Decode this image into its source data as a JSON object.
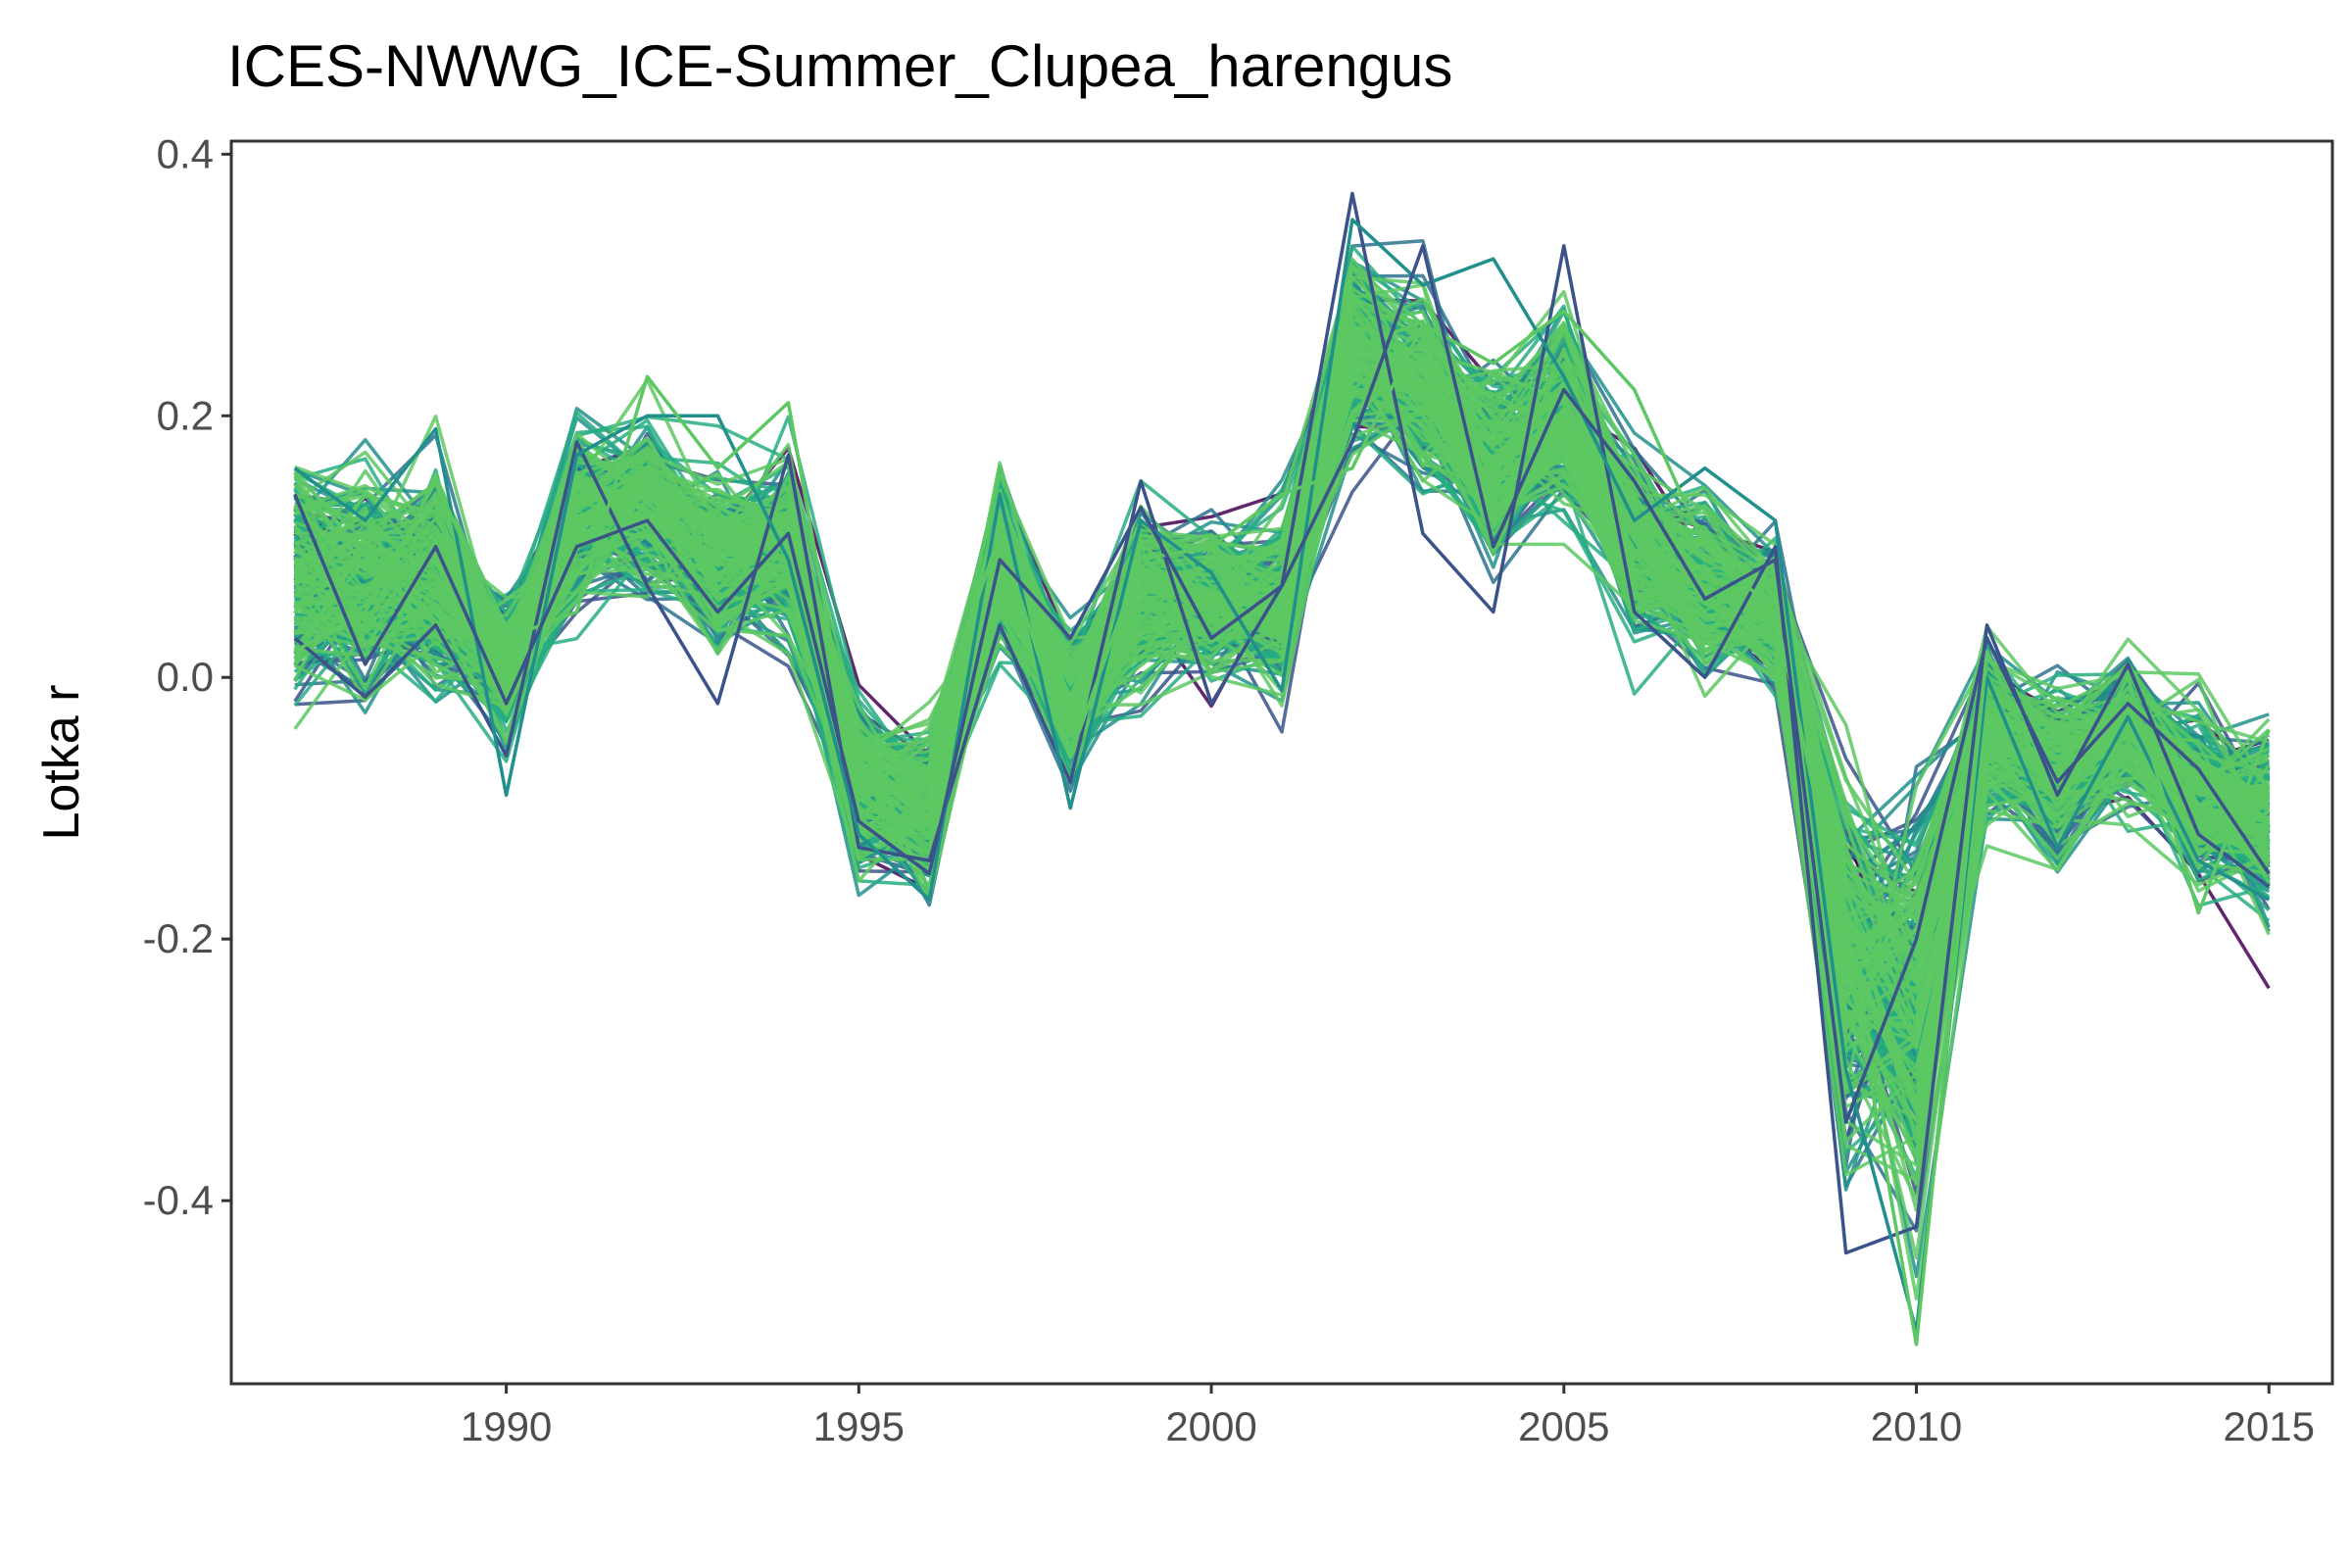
{
  "chart_data": {
    "type": "line",
    "title": "ICES-NWWG_ICE-Summer_Clupea_harengus",
    "xlabel": "",
    "ylabel": "Lotka r",
    "xlim": [
      1986.1,
      2015.9
    ],
    "ylim": [
      -0.54,
      0.41
    ],
    "x_ticks": [
      1990,
      1995,
      2000,
      2005,
      2010,
      2015
    ],
    "x_tick_labels": [
      "1990",
      "1995",
      "2000",
      "2005",
      "2010",
      "2015"
    ],
    "y_ticks": [
      -0.4,
      -0.2,
      0.0,
      0.2,
      0.4
    ],
    "y_tick_labels": [
      "-0.4",
      "-0.2",
      "0.0",
      "0.2",
      "0.4"
    ],
    "grid": false,
    "legend": "none",
    "palette": [
      "#440154",
      "#3b528b",
      "#2c728e",
      "#21908c",
      "#27ad81",
      "#5dc863"
    ],
    "x": [
      1987,
      1988,
      1989,
      1990,
      1991,
      1992,
      1993,
      1994,
      1995,
      1996,
      1997,
      1998,
      1999,
      2000,
      2001,
      2002,
      2003,
      2004,
      2005,
      2006,
      2007,
      2008,
      2009,
      2010,
      2011,
      2012,
      2013,
      2014,
      2015
    ],
    "series_mean": [
      0.075,
      0.07,
      0.075,
      0.01,
      0.12,
      0.13,
      0.09,
      0.1,
      -0.08,
      -0.1,
      0.09,
      -0.02,
      0.06,
      0.06,
      0.06,
      0.25,
      0.22,
      0.16,
      0.2,
      0.1,
      0.07,
      0.05,
      -0.22,
      -0.25,
      -0.04,
      -0.07,
      -0.04,
      -0.09,
      -0.11
    ],
    "series_spread": [
      0.04,
      0.04,
      0.04,
      0.025,
      0.03,
      0.03,
      0.03,
      0.03,
      0.03,
      0.03,
      0.03,
      0.025,
      0.03,
      0.025,
      0.03,
      0.035,
      0.03,
      0.035,
      0.035,
      0.03,
      0.03,
      0.025,
      0.06,
      0.07,
      0.03,
      0.03,
      0.025,
      0.03,
      0.03
    ],
    "series_count": 300,
    "highlighted_series": [
      {
        "values": [
          0.03,
          -0.015,
          0.04,
          -0.06,
          0.18,
          0.07,
          -0.02,
          0.17,
          -0.13,
          -0.14,
          0.04,
          -0.08,
          0.15,
          -0.02,
          0.07,
          0.37,
          0.11,
          0.05,
          0.33,
          0.05,
          0.0,
          0.1,
          -0.44,
          -0.42,
          0.04,
          -0.09,
          0.01,
          -0.12,
          -0.16
        ]
      },
      {
        "values": [
          0.16,
          0.12,
          0.19,
          -0.09,
          0.17,
          0.2,
          0.2,
          0.09,
          -0.12,
          -0.17,
          0.14,
          -0.1,
          0.12,
          0.08,
          -0.01,
          0.35,
          0.3,
          0.32,
          0.23,
          0.12,
          0.16,
          0.12,
          -0.3,
          -0.5,
          0.0,
          -0.13,
          -0.03,
          -0.14,
          -0.17
        ]
      },
      {
        "values": [
          0.02,
          0.05,
          0.15,
          0.03,
          0.05,
          0.23,
          0.16,
          0.21,
          -0.09,
          -0.05,
          0.11,
          -0.06,
          0.09,
          0.1,
          0.14,
          0.16,
          0.27,
          0.24,
          0.28,
          0.22,
          0.1,
          0.05,
          -0.2,
          -0.51,
          0.02,
          -0.1,
          0.0,
          -0.18,
          -0.04
        ]
      },
      {
        "values": [
          0.14,
          0.01,
          0.1,
          -0.02,
          0.1,
          0.12,
          0.05,
          0.11,
          -0.11,
          -0.15,
          0.09,
          0.03,
          0.13,
          0.03,
          0.07,
          0.18,
          0.33,
          0.1,
          0.22,
          0.15,
          0.06,
          0.09,
          -0.34,
          -0.2,
          0.03,
          -0.08,
          -0.02,
          -0.07,
          -0.15
        ]
      }
    ]
  }
}
